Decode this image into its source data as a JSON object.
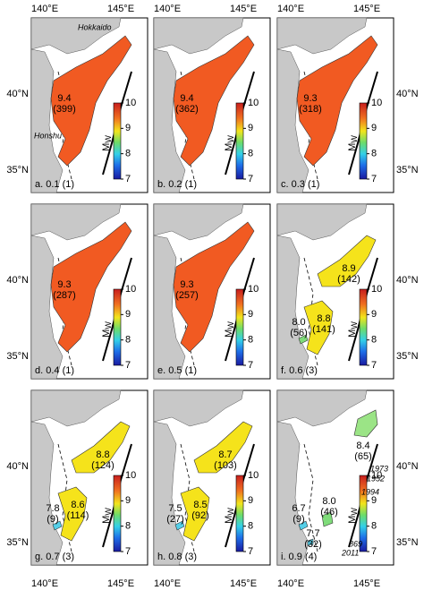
{
  "axes": {
    "lon_labels": [
      "140°E",
      "145°E"
    ],
    "lat_labels": [
      "40°N",
      "35°N"
    ]
  },
  "colorbar": {
    "ticks": [
      7,
      8,
      9,
      10
    ],
    "label": {
      "main": "M",
      "sub": "W"
    }
  },
  "place_labels": [
    "Hokkaido",
    "Honshu"
  ],
  "year_labels": [
    "1973",
    "1952",
    "1994",
    "869",
    "2011"
  ],
  "panels": [
    {
      "label": "a. 0.1 (1)",
      "zones": [
        {
          "mw": "9.4",
          "n": "(399)",
          "color": "#f15a22"
        }
      ]
    },
    {
      "label": "b. 0.2 (1)",
      "zones": [
        {
          "mw": "9.4",
          "n": "(362)",
          "color": "#f15a22"
        }
      ]
    },
    {
      "label": "c. 0.3 (1)",
      "zones": [
        {
          "mw": "9.3",
          "n": "(318)",
          "color": "#f15a22"
        }
      ]
    },
    {
      "label": "d. 0.4 (1)",
      "zones": [
        {
          "mw": "9.3",
          "n": "(287)",
          "color": "#f15a22"
        }
      ]
    },
    {
      "label": "e. 0.5 (1)",
      "zones": [
        {
          "mw": "9.3",
          "n": "(257)",
          "color": "#f15a22"
        }
      ]
    },
    {
      "label": "f. 0.6 (3)",
      "zones": [
        {
          "mw": "8.9",
          "n": "(142)",
          "color": "#f5e31b"
        },
        {
          "mw": "8.8",
          "n": "(141)",
          "color": "#f5e31b"
        },
        {
          "mw": "8.0",
          "n": "(56)",
          "color": "#7fdc7a"
        }
      ]
    },
    {
      "label": "g. 0.7 (3)",
      "zones": [
        {
          "mw": "8.8",
          "n": "(124)",
          "color": "#f5e31b"
        },
        {
          "mw": "8.6",
          "n": "(114)",
          "color": "#f5e31b"
        },
        {
          "mw": "7.8",
          "n": "(9)",
          "color": "#55cfe8"
        }
      ]
    },
    {
      "label": "h. 0.8 (3)",
      "zones": [
        {
          "mw": "8.7",
          "n": "(103)",
          "color": "#f5e31b"
        },
        {
          "mw": "8.5",
          "n": "(92)",
          "color": "#f5e31b"
        },
        {
          "mw": "7.5",
          "n": "(27)",
          "color": "#55cfe8"
        }
      ]
    },
    {
      "label": "i. 0.9 (4)",
      "zones": [
        {
          "mw": "8.4",
          "n": "(65)",
          "color": "#9be486"
        },
        {
          "mw": "8.0",
          "n": "(46)",
          "color": "#7fdc7a"
        },
        {
          "mw": "6.7",
          "n": "(9)",
          "color": "#55cfe8"
        },
        {
          "mw": "7.7",
          "n": "(32)",
          "color": "#55cfe8"
        }
      ]
    }
  ]
}
